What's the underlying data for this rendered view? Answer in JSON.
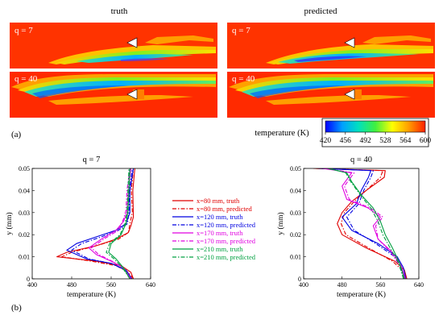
{
  "panel_a_label": "(a)",
  "panel_b_label": "(b)",
  "contour": {
    "column_titles": [
      "truth",
      "predicted"
    ],
    "panels": [
      {
        "column": "truth",
        "q_label": "q = 7"
      },
      {
        "column": "predicted",
        "q_label": "q = 7"
      },
      {
        "column": "truth",
        "q_label": "q = 40"
      },
      {
        "column": "predicted",
        "q_label": "q = 40"
      }
    ],
    "colorbar": {
      "title": "temperature (K)",
      "ticks": [
        "420",
        "456",
        "492",
        "528",
        "564",
        "600"
      ],
      "colors": [
        "#0000ff",
        "#00a0ff",
        "#00e0c0",
        "#40f040",
        "#ffff00",
        "#ffa000",
        "#ff2000"
      ]
    }
  },
  "legend": [
    {
      "label": "x=80 mm, truth",
      "color": "#e00000",
      "dash": "solid"
    },
    {
      "label": "x=80 mm, predicted",
      "color": "#e00000",
      "dash": "dashdot"
    },
    {
      "label": "x=120 mm, truth",
      "color": "#0000e0",
      "dash": "solid"
    },
    {
      "label": "x=120 mm, predicted",
      "color": "#0000e0",
      "dash": "dashdot"
    },
    {
      "label": "x=170 mm, truth",
      "color": "#e000e0",
      "dash": "solid"
    },
    {
      "label": "x=170 mm, predicted",
      "color": "#e000e0",
      "dash": "dashdot"
    },
    {
      "label": "x=210 mm, truth",
      "color": "#00a040",
      "dash": "solid"
    },
    {
      "label": "x=210 mm, predicted",
      "color": "#00a040",
      "dash": "dashdot"
    }
  ],
  "chart_data": [
    {
      "type": "line",
      "title": "q = 7",
      "xlabel": "temperature (K)",
      "ylabel": "y (mm)",
      "xlim": [
        400,
        640
      ],
      "ylim": [
        0,
        0.05
      ],
      "xticks": [
        400,
        480,
        560,
        640
      ],
      "yticks": [
        0,
        0.01,
        0.02,
        0.03,
        0.04,
        0.05
      ],
      "series": [
        {
          "name": "x=80 mm, truth",
          "color": "#e00000",
          "dash": "solid",
          "points": [
            [
              605,
              0
            ],
            [
              600,
              0.003
            ],
            [
              580,
              0.006
            ],
            [
              530,
              0.008
            ],
            [
              450,
              0.01
            ],
            [
              470,
              0.012
            ],
            [
              530,
              0.015
            ],
            [
              570,
              0.018
            ],
            [
              595,
              0.021
            ],
            [
              600,
              0.024
            ],
            [
              605,
              0.028
            ],
            [
              604,
              0.04
            ],
            [
              608,
              0.05
            ]
          ]
        },
        {
          "name": "x=80 mm, predicted",
          "color": "#e00000",
          "dash": "dashdot",
          "points": [
            [
              605,
              0
            ],
            [
              595,
              0.003
            ],
            [
              570,
              0.006
            ],
            [
              520,
              0.008
            ],
            [
              460,
              0.01
            ],
            [
              480,
              0.012
            ],
            [
              530,
              0.015
            ],
            [
              575,
              0.018
            ],
            [
              595,
              0.021
            ],
            [
              598,
              0.025
            ],
            [
              603,
              0.03
            ],
            [
              601,
              0.04
            ],
            [
              605,
              0.05
            ]
          ]
        },
        {
          "name": "x=120 mm, truth",
          "color": "#0000e0",
          "dash": "solid",
          "points": [
            [
              602,
              0
            ],
            [
              590,
              0.004
            ],
            [
              560,
              0.007
            ],
            [
              510,
              0.009
            ],
            [
              470,
              0.013
            ],
            [
              490,
              0.016
            ],
            [
              530,
              0.019
            ],
            [
              570,
              0.022
            ],
            [
              590,
              0.025
            ],
            [
              598,
              0.03
            ],
            [
              598,
              0.04
            ],
            [
              605,
              0.05
            ]
          ]
        },
        {
          "name": "x=120 mm, predicted",
          "color": "#0000e0",
          "dash": "dashdot",
          "points": [
            [
              602,
              0
            ],
            [
              588,
              0.004
            ],
            [
              560,
              0.007
            ],
            [
              515,
              0.009
            ],
            [
              480,
              0.013
            ],
            [
              500,
              0.016
            ],
            [
              540,
              0.019
            ],
            [
              575,
              0.022
            ],
            [
              593,
              0.025
            ],
            [
              596,
              0.03
            ],
            [
              597,
              0.04
            ],
            [
              603,
              0.05
            ]
          ]
        },
        {
          "name": "x=170 mm, truth",
          "color": "#e000e0",
          "dash": "solid",
          "points": [
            [
              600,
              0
            ],
            [
              585,
              0.005
            ],
            [
              560,
              0.008
            ],
            [
              530,
              0.011
            ],
            [
              515,
              0.014
            ],
            [
              540,
              0.018
            ],
            [
              570,
              0.022
            ],
            [
              585,
              0.026
            ],
            [
              592,
              0.03
            ],
            [
              595,
              0.04
            ],
            [
              600,
              0.05
            ]
          ]
        },
        {
          "name": "x=170 mm, predicted",
          "color": "#e000e0",
          "dash": "dashdot",
          "points": [
            [
              600,
              0
            ],
            [
              585,
              0.005
            ],
            [
              562,
              0.008
            ],
            [
              535,
              0.011
            ],
            [
              520,
              0.014
            ],
            [
              545,
              0.018
            ],
            [
              575,
              0.022
            ],
            [
              585,
              0.027
            ],
            [
              590,
              0.031
            ],
            [
              592,
              0.04
            ],
            [
              598,
              0.05
            ]
          ]
        },
        {
          "name": "x=210 mm, truth",
          "color": "#00a040",
          "dash": "solid",
          "points": [
            [
              598,
              0
            ],
            [
              585,
              0.005
            ],
            [
              570,
              0.009
            ],
            [
              555,
              0.012
            ],
            [
              560,
              0.016
            ],
            [
              580,
              0.02
            ],
            [
              590,
              0.025
            ],
            [
              594,
              0.03
            ],
            [
              596,
              0.04
            ],
            [
              598,
              0.05
            ]
          ]
        },
        {
          "name": "x=210 mm, predicted",
          "color": "#00a040",
          "dash": "dashdot",
          "points": [
            [
              598,
              0
            ],
            [
              583,
              0.005
            ],
            [
              566,
              0.009
            ],
            [
              550,
              0.012
            ],
            [
              557,
              0.016
            ],
            [
              578,
              0.02
            ],
            [
              588,
              0.025
            ],
            [
              592,
              0.03
            ],
            [
              594,
              0.04
            ],
            [
              596,
              0.05
            ]
          ]
        }
      ]
    },
    {
      "type": "line",
      "title": "q = 40",
      "xlabel": "temperature (K)",
      "ylabel": "y (mm)",
      "xlim": [
        400,
        640
      ],
      "ylim": [
        0,
        0.05
      ],
      "xticks": [
        400,
        480,
        560,
        640
      ],
      "yticks": [
        0,
        0.01,
        0.02,
        0.03,
        0.04,
        0.05
      ],
      "series": [
        {
          "name": "x=80 mm, truth",
          "color": "#e00000",
          "dash": "solid",
          "points": [
            [
              615,
              0
            ],
            [
              610,
              0.004
            ],
            [
              590,
              0.008
            ],
            [
              530,
              0.014
            ],
            [
              480,
              0.02
            ],
            [
              470,
              0.025
            ],
            [
              480,
              0.03
            ],
            [
              500,
              0.035
            ],
            [
              530,
              0.04
            ],
            [
              568,
              0.046
            ],
            [
              570,
              0.049
            ],
            [
              420,
              0.05
            ]
          ]
        },
        {
          "name": "x=80 mm, predicted",
          "color": "#e00000",
          "dash": "dashdot",
          "points": [
            [
              612,
              0
            ],
            [
              605,
              0.004
            ],
            [
              585,
              0.008
            ],
            [
              535,
              0.014
            ],
            [
              488,
              0.02
            ],
            [
              478,
              0.025
            ],
            [
              485,
              0.03
            ],
            [
              505,
              0.035
            ],
            [
              530,
              0.04
            ],
            [
              560,
              0.046
            ],
            [
              565,
              0.049
            ],
            [
              425,
              0.05
            ]
          ]
        },
        {
          "name": "x=120 mm, truth",
          "color": "#0000e0",
          "dash": "solid",
          "points": [
            [
              613,
              0
            ],
            [
              608,
              0.005
            ],
            [
              595,
              0.01
            ],
            [
              555,
              0.016
            ],
            [
              500,
              0.022
            ],
            [
              480,
              0.028
            ],
            [
              510,
              0.034
            ],
            [
              520,
              0.04
            ],
            [
              535,
              0.046
            ],
            [
              540,
              0.049
            ],
            [
              430,
              0.05
            ]
          ]
        },
        {
          "name": "x=120 mm, predicted",
          "color": "#0000e0",
          "dash": "dashdot",
          "points": [
            [
              610,
              0
            ],
            [
              604,
              0.005
            ],
            [
              590,
              0.01
            ],
            [
              550,
              0.016
            ],
            [
              505,
              0.022
            ],
            [
              490,
              0.028
            ],
            [
              515,
              0.034
            ],
            [
              525,
              0.04
            ],
            [
              540,
              0.046
            ],
            [
              545,
              0.049
            ],
            [
              435,
              0.05
            ]
          ]
        },
        {
          "name": "x=170 mm, truth",
          "color": "#e000e0",
          "dash": "solid",
          "points": [
            [
              612,
              0
            ],
            [
              603,
              0.006
            ],
            [
              585,
              0.012
            ],
            [
              555,
              0.018
            ],
            [
              545,
              0.024
            ],
            [
              560,
              0.028
            ],
            [
              535,
              0.032
            ],
            [
              490,
              0.036
            ],
            [
              480,
              0.042
            ],
            [
              500,
              0.048
            ],
            [
              440,
              0.05
            ]
          ]
        },
        {
          "name": "x=170 mm, predicted",
          "color": "#e000e0",
          "dash": "dashdot",
          "points": [
            [
              610,
              0
            ],
            [
              600,
              0.006
            ],
            [
              582,
              0.012
            ],
            [
              555,
              0.018
            ],
            [
              550,
              0.024
            ],
            [
              565,
              0.028
            ],
            [
              540,
              0.032
            ],
            [
              495,
              0.036
            ],
            [
              485,
              0.042
            ],
            [
              505,
              0.048
            ],
            [
              445,
              0.05
            ]
          ]
        },
        {
          "name": "x=210 mm, truth",
          "color": "#00a040",
          "dash": "solid",
          "points": [
            [
              610,
              0
            ],
            [
              600,
              0.007
            ],
            [
              585,
              0.014
            ],
            [
              570,
              0.02
            ],
            [
              560,
              0.026
            ],
            [
              545,
              0.032
            ],
            [
              520,
              0.038
            ],
            [
              500,
              0.044
            ],
            [
              490,
              0.048
            ],
            [
              450,
              0.05
            ]
          ]
        },
        {
          "name": "x=210 mm, predicted",
          "color": "#00a040",
          "dash": "dashdot",
          "points": [
            [
              608,
              0
            ],
            [
              598,
              0.007
            ],
            [
              580,
              0.014
            ],
            [
              565,
              0.02
            ],
            [
              555,
              0.026
            ],
            [
              540,
              0.032
            ],
            [
              518,
              0.038
            ],
            [
              498,
              0.044
            ],
            [
              488,
              0.048
            ],
            [
              455,
              0.05
            ]
          ]
        }
      ]
    }
  ]
}
